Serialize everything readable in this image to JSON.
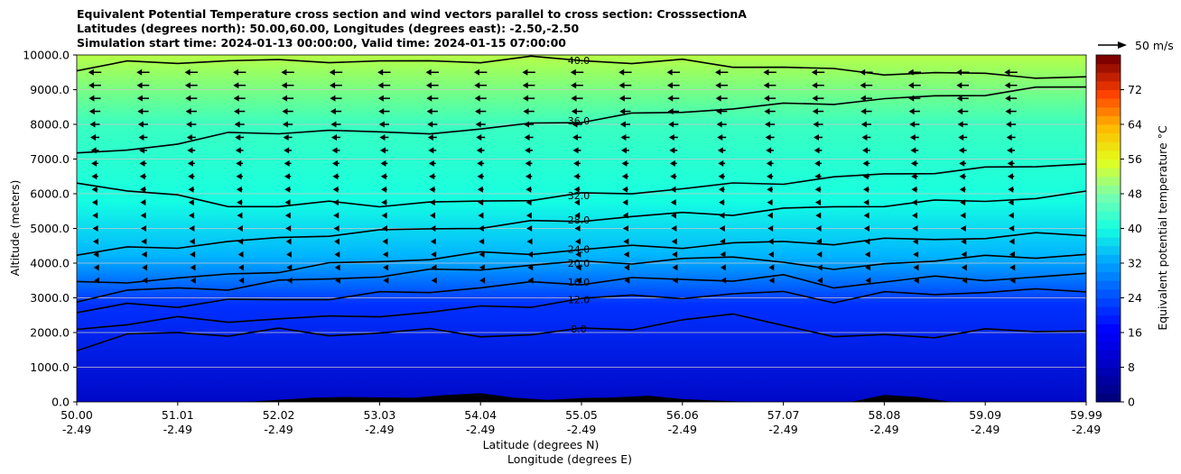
{
  "chart_data": {
    "type": "heatmap",
    "title_lines": [
      "Equivalent Potential Temperature cross section and wind vectors parallel to cross section: CrosssectionA",
      "Latitudes (degrees north): 50.00,60.00, Longitudes (degrees east): -2.50,-2.50",
      "Simulation start time: 2024-01-13 00:00:00, Valid time: 2024-01-15 07:00:00"
    ],
    "ylabel": "Altitude (meters)",
    "xlabel_lines": [
      "Latitude (degrees N)",
      "Longitude (degrees E)"
    ],
    "ylim": [
      0,
      10000
    ],
    "yticks": [
      "0.0",
      "1000.0",
      "2000.0",
      "3000.0",
      "4000.0",
      "5000.0",
      "6000.0",
      "7000.0",
      "8000.0",
      "9000.0",
      "10000.0"
    ],
    "xlim": [
      50.0,
      59.99
    ],
    "xticks": [
      {
        "lat": "50.00",
        "lon": "-2.49"
      },
      {
        "lat": "51.01",
        "lon": "-2.49"
      },
      {
        "lat": "52.02",
        "lon": "-2.49"
      },
      {
        "lat": "53.03",
        "lon": "-2.49"
      },
      {
        "lat": "54.04",
        "lon": "-2.49"
      },
      {
        "lat": "55.05",
        "lon": "-2.49"
      },
      {
        "lat": "56.06",
        "lon": "-2.49"
      },
      {
        "lat": "57.07",
        "lon": "-2.49"
      },
      {
        "lat": "58.08",
        "lon": "-2.49"
      },
      {
        "lat": "59.09",
        "lon": "-2.49"
      },
      {
        "lat": "59.99",
        "lon": "-2.49"
      }
    ],
    "grid": "horizontal",
    "colorbar": {
      "label": "Equivalent potential temperature °C",
      "range": [
        0,
        80
      ],
      "ticks": [
        "0",
        "8",
        "16",
        "24",
        "32",
        "40",
        "48",
        "56",
        "64",
        "72"
      ]
    },
    "quiver_key": {
      "label": "50 m/s",
      "speed": 50
    },
    "contour_labels": [
      "40.0",
      "36.0",
      "32.0",
      "28.0",
      "24.0",
      "20.0",
      "16.0",
      "12.0",
      "8.0"
    ],
    "contours": [
      {
        "level": 8,
        "y": [
          1550,
          1900,
          2000,
          1950,
          2050,
          1950,
          2000,
          2050,
          1950,
          1900,
          2100,
          2150,
          2300,
          2550,
          2250,
          1800,
          2000,
          1850,
          2050,
          2100,
          2000
        ]
      },
      {
        "level": 12,
        "y": [
          2050,
          2300,
          2400,
          2300,
          2450,
          2400,
          2500,
          2600,
          2700,
          2800,
          2950,
          3050,
          3050,
          3050,
          3200,
          2900,
          3100,
          3150,
          3150,
          3200,
          3250
        ]
      },
      {
        "level": 16,
        "y": [
          2550,
          2800,
          2800,
          2900,
          2950,
          3000,
          3100,
          3200,
          3300,
          3400,
          3450,
          3550,
          3500,
          3550,
          3600,
          3300,
          3500,
          3550,
          3550,
          3600,
          3650
        ]
      },
      {
        "level": 20,
        "y": [
          2950,
          3200,
          3250,
          3300,
          3450,
          3550,
          3650,
          3750,
          3850,
          3950,
          4000,
          4050,
          4100,
          4150,
          4100,
          3750,
          4000,
          4100,
          4150,
          4200,
          4250
        ]
      },
      {
        "level": 24,
        "y": [
          3400,
          3500,
          3550,
          3650,
          3800,
          3950,
          4050,
          4150,
          4250,
          4300,
          4400,
          4450,
          4500,
          4550,
          4600,
          4600,
          4650,
          4700,
          4750,
          4800,
          4850
        ]
      },
      {
        "level": 28,
        "y": [
          4250,
          4400,
          4500,
          4600,
          4700,
          4850,
          4900,
          5000,
          5050,
          5150,
          5250,
          5350,
          5400,
          5450,
          5550,
          5600,
          5700,
          5750,
          5800,
          5900,
          6000
        ]
      },
      {
        "level": 32,
        "y": [
          6350,
          6100,
          5900,
          5700,
          5600,
          5750,
          5700,
          5700,
          5800,
          5850,
          5950,
          6050,
          6150,
          6250,
          6350,
          6450,
          6550,
          6650,
          6700,
          6800,
          6900
        ]
      },
      {
        "level": 36,
        "y": [
          7100,
          7300,
          7450,
          7700,
          7800,
          7800,
          7750,
          7800,
          7800,
          8050,
          8100,
          8250,
          8400,
          8450,
          8550,
          8650,
          8700,
          8800,
          8900,
          9000,
          9100
        ]
      },
      {
        "level": 40,
        "y": [
          9600,
          9750,
          9800,
          9850,
          9800,
          9850,
          9800,
          9800,
          9850,
          9900,
          9850,
          9800,
          9800,
          9700,
          9650,
          9550,
          9500,
          9450,
          9450,
          9400,
          9300
        ]
      }
    ],
    "surface_height_m": [
      0,
      0,
      0,
      0,
      0,
      0,
      60,
      120,
      140,
      130,
      120,
      200,
      250,
      120,
      60,
      110,
      130,
      180,
      80,
      40,
      0,
      0,
      0,
      0,
      200,
      140,
      0,
      0,
      0,
      0,
      0
    ],
    "wind_u_by_altitude": [
      {
        "altitude": 500,
        "u": 0
      },
      {
        "altitude": 2500,
        "u": -1
      },
      {
        "altitude": 4000,
        "u": -5
      },
      {
        "altitude": 5500,
        "u": -10
      },
      {
        "altitude": 7000,
        "u": -14
      },
      {
        "altitude": 8500,
        "u": -22
      },
      {
        "altitude": 9500,
        "u": -25
      }
    ],
    "colors": {
      "colormap": [
        "#00007f",
        "#0000c4",
        "#0000ff",
        "#0050ff",
        "#00a4ff",
        "#15ffe2",
        "#7affac",
        "#e3ff1b",
        "#ffb800",
        "#ff3f00",
        "#7f0000"
      ],
      "contour": "#000000",
      "terrain": "#000000",
      "grid": "#c8c8c8"
    }
  }
}
